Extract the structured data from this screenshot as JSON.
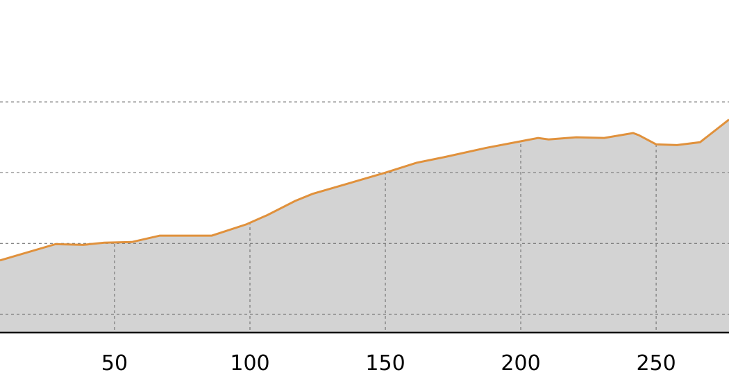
{
  "chart_data": {
    "type": "area",
    "x": [
      7.7,
      28.2,
      38.5,
      46.2,
      56.4,
      66.7,
      85.9,
      98.7,
      106.4,
      116.7,
      123.1,
      150,
      161.5,
      171.8,
      187.2,
      206.4,
      210.3,
      220.5,
      230.8,
      241.5,
      243.6,
      250,
      257.7,
      266.2,
      276.9
    ],
    "values": [
      1.76,
      1.99,
      1.98,
      2.01,
      2.02,
      2.11,
      2.11,
      2.27,
      2.4,
      2.6,
      2.7,
      3.0,
      3.14,
      3.22,
      3.35,
      3.49,
      3.47,
      3.5,
      3.49,
      3.56,
      3.53,
      3.4,
      3.39,
      3.43,
      3.75
    ],
    "color": "#e0913c",
    "fill": "#d3d3d3",
    "xlim": [
      7.7,
      276.9
    ],
    "xticks": [
      50,
      100,
      150,
      200,
      250
    ],
    "ylim": [
      0.74,
      5.44
    ],
    "yticks": [
      1,
      2,
      3,
      4
    ],
    "grid": true
  }
}
